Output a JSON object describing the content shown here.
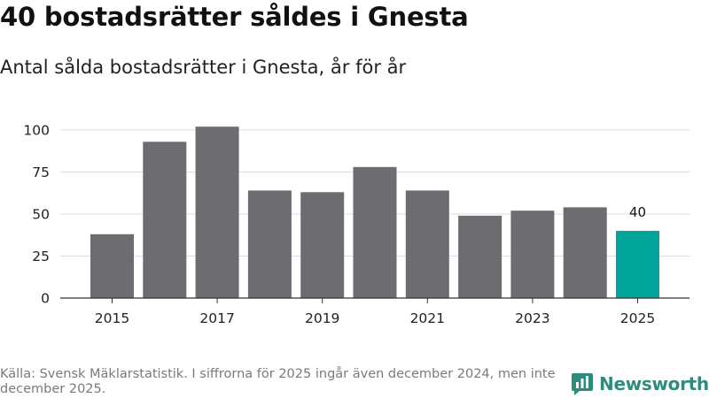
{
  "header": {
    "title": "40 bostadsrätter såldes i Gnesta",
    "subtitle": "Antal sålda bostadsrätter i Gnesta, år för år"
  },
  "footer": {
    "source": "Källa: Svensk Mäklarstatistik. I siffrorna för 2025 ingår även december 2024, men inte december 2025.",
    "brand": "Newsworthy"
  },
  "colors": {
    "bar": "#6d6c70",
    "highlight": "#00a499",
    "grid": "#dddddd",
    "axis": "#333333",
    "brand": "#2f8c7d"
  },
  "chart_data": {
    "type": "bar",
    "title": "Antal sålda bostadsrätter i Gnesta, år för år",
    "xlabel": "",
    "ylabel": "",
    "categories": [
      "2015",
      "2016",
      "2017",
      "2018",
      "2019",
      "2020",
      "2021",
      "2022",
      "2023",
      "2024",
      "2025"
    ],
    "values": [
      38,
      93,
      102,
      64,
      63,
      78,
      64,
      49,
      52,
      54,
      40
    ],
    "highlight_index": 10,
    "value_labels": [
      {
        "category": "2025",
        "text": "40"
      }
    ],
    "x_tick_labels": [
      "2015",
      "2017",
      "2019",
      "2021",
      "2023",
      "2025"
    ],
    "y_ticks": [
      0,
      25,
      50,
      75,
      100
    ],
    "ylim": [
      0,
      105
    ],
    "grid": true
  }
}
